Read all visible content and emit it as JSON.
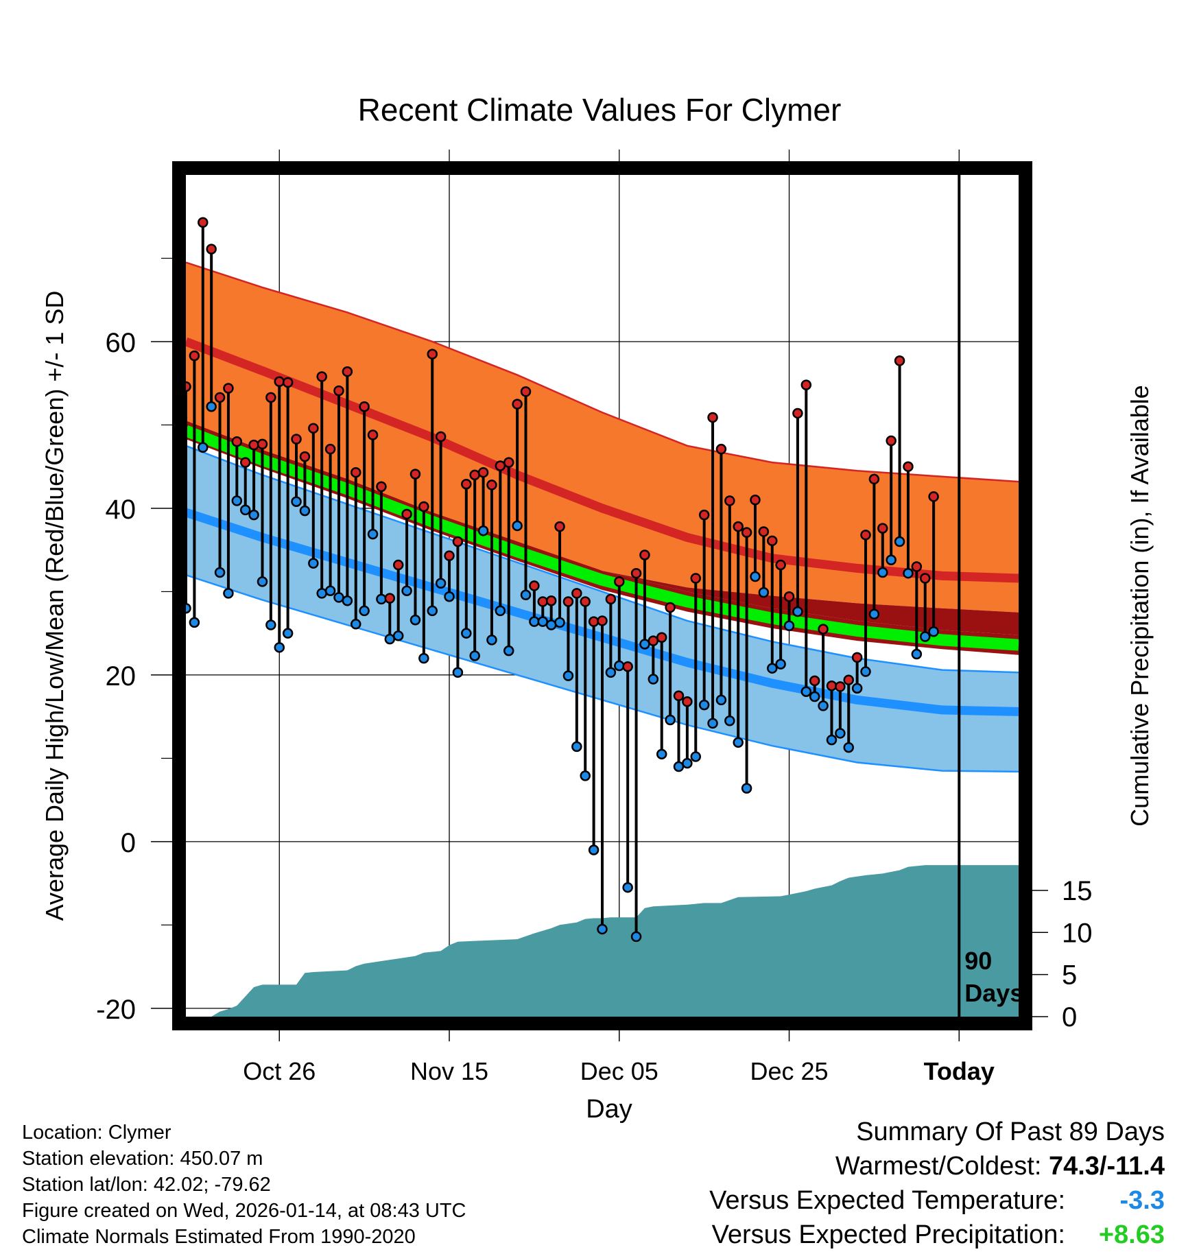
{
  "title": "Recent Climate Values For Clymer",
  "y_left_label": "Average Daily High/Low/Mean (Red/Blue/Green) +/- 1 SD",
  "y_right_label": "Cumulative Precipitation (in), If Available",
  "x_label": "Day",
  "today_marker": {
    "line1": "90",
    "line2": "Days"
  },
  "info": {
    "location": "Location: Clymer",
    "elevation": "Station elevation: 450.07 m",
    "latlon": "Station lat/lon: 42.02; -79.62",
    "created": "Figure created on Wed, 2026-01-14, at 08:43 UTC",
    "normals": "Climate Normals Estimated From 1990-2020"
  },
  "summary": {
    "heading": "Summary Of Past 89 Days",
    "warm_label": "Warmest/Coldest: ",
    "warm_value": "74.3/-11.4",
    "temp_label": "Versus Expected Temperature:",
    "temp_value": "-3.3",
    "precip_label": "Versus Expected Precipitation:",
    "precip_value": "+8.63"
  },
  "colors": {
    "high_band": "#f5782d",
    "high_line": "#d42525",
    "low_band": "#87c3e8",
    "low_line": "#1e90ff",
    "mean_band": "#9b1010",
    "mean_line": "#00ee00",
    "precip": "#4a9aa2",
    "dot_high": "#d42525",
    "dot_low": "#1e88e5",
    "temp_value": "#1e88e5",
    "precip_value": "#22cc22"
  },
  "chart_data": {
    "type": "line",
    "x_range_days": [
      -89,
      9
    ],
    "x_ticks": [
      {
        "day": -78,
        "label": "Oct 26"
      },
      {
        "day": -58,
        "label": "Nov 15"
      },
      {
        "day": -38,
        "label": "Dec 05"
      },
      {
        "day": -18,
        "label": "Dec 25"
      },
      {
        "day": 2,
        "label": "Today"
      }
    ],
    "y_left": {
      "min": -21,
      "max": 80,
      "ticks": [
        -20,
        0,
        20,
        40,
        60
      ]
    },
    "y_right": {
      "min": 0,
      "max": 100,
      "ticks": [
        0,
        5,
        10,
        15
      ]
    },
    "normals": {
      "day": [
        -89,
        -80,
        -70,
        -60,
        -50,
        -40,
        -30,
        -20,
        -10,
        0,
        9
      ],
      "high_upper": [
        69.5,
        66.5,
        63.5,
        60,
        56,
        51.5,
        47.5,
        45.5,
        44.5,
        43.8,
        43.2
      ],
      "high_mean": [
        60,
        56.5,
        52.5,
        48.5,
        44,
        40,
        36.5,
        34,
        32.8,
        31.9,
        31.6
      ],
      "high_lower": [
        49.5,
        46.5,
        43,
        39,
        35.5,
        32.5,
        30.5,
        29.5,
        28.6,
        28,
        27.5
      ],
      "mean_upper": [
        50.5,
        47,
        43.5,
        39.5,
        36,
        32.5,
        30,
        28,
        26.5,
        25.4,
        24.8
      ],
      "mean_mean": [
        49.3,
        45.8,
        42.3,
        38.4,
        34.8,
        31.4,
        28.8,
        26.8,
        25.3,
        24.2,
        23.6
      ],
      "mean_lower": [
        48.3,
        44.8,
        41.2,
        37.3,
        33.7,
        30.2,
        27.6,
        25.6,
        24.1,
        23.1,
        22.4
      ],
      "low_upper": [
        47.5,
        44,
        40.5,
        37,
        33.5,
        30,
        26.5,
        24,
        22,
        20.6,
        20.3
      ],
      "low_mean": [
        39.5,
        36.5,
        33.5,
        30.5,
        27.5,
        24.5,
        21.5,
        19,
        17,
        15.8,
        15.6
      ],
      "low_lower": [
        32,
        29,
        26,
        23,
        20,
        17,
        14,
        11.5,
        9.5,
        8.5,
        8.4
      ]
    },
    "daily_highs": [
      54.6,
      58.3,
      74.3,
      71.1,
      53.3,
      54.4,
      48.0,
      45.5,
      47.6,
      47.7,
      53.3,
      55.2,
      55.1,
      48.3,
      46.2,
      49.6,
      55.8,
      47.1,
      54.1,
      56.4,
      44.3,
      52.2,
      48.8,
      42.6,
      29.2,
      33.2,
      39.3,
      44.1,
      40.2,
      58.5,
      48.6,
      34.3,
      36.0,
      42.9,
      44.0,
      44.3,
      42.8,
      45.1,
      45.5,
      52.5,
      54.0,
      30.7,
      28.8,
      28.9,
      37.8,
      28.8,
      29.8,
      28.8,
      26.4,
      26.5,
      29.1,
      31.2,
      21.0,
      32.2,
      34.4,
      24.1,
      24.5,
      28.1,
      17.5,
      16.8,
      31.6,
      39.2,
      50.9,
      47.1,
      40.9,
      37.8,
      37.1,
      41.0,
      37.2,
      36.1,
      33.2,
      29.4,
      51.4,
      54.8,
      19.3,
      25.5,
      18.7,
      18.6,
      19.4,
      22.1,
      36.8,
      43.5,
      37.6,
      48.1,
      57.7,
      45.0,
      33.0,
      31.6,
      41.4
    ],
    "daily_lows": [
      28.0,
      26.3,
      47.3,
      52.2,
      32.3,
      29.8,
      40.9,
      39.8,
      39.2,
      31.2,
      26.0,
      23.3,
      25.0,
      40.8,
      39.7,
      33.4,
      29.8,
      30.1,
      29.3,
      28.9,
      26.1,
      27.7,
      36.9,
      29.1,
      24.3,
      24.7,
      30.1,
      26.6,
      22.0,
      27.7,
      31.0,
      29.4,
      20.3,
      25.0,
      22.3,
      37.3,
      24.2,
      27.7,
      22.9,
      37.9,
      29.6,
      26.4,
      26.4,
      26.0,
      26.3,
      19.9,
      11.4,
      7.9,
      -1.0,
      -10.5,
      20.3,
      21.1,
      -5.5,
      -11.4,
      23.7,
      19.5,
      10.5,
      14.6,
      9.0,
      9.4,
      10.2,
      16.4,
      14.2,
      17.0,
      14.5,
      11.9,
      6.4,
      31.8,
      29.9,
      20.8,
      21.3,
      25.9,
      27.6,
      18.0,
      17.4,
      16.3,
      12.2,
      13.0,
      11.3,
      18.4,
      20.4,
      27.3,
      32.3,
      33.8,
      36.0,
      32.2,
      22.5,
      24.6,
      25.2
    ],
    "precip_cumulative": {
      "day": [
        -89,
        -86,
        -85,
        -84,
        -83,
        -82,
        -81,
        -80,
        -76,
        -75,
        -74,
        -70,
        -69,
        -68,
        -66,
        -64,
        -62,
        -61,
        -59,
        -58,
        -57,
        -55,
        -50,
        -48,
        -46,
        -45,
        -43,
        -42,
        -41,
        -40,
        -39,
        -36,
        -35,
        -34,
        -30,
        -29,
        -28,
        -26,
        -24,
        -19,
        -16,
        -15,
        -13,
        -12,
        -11,
        -9,
        -7,
        -5,
        -4,
        -2,
        -1,
        0,
        9
      ],
      "value": [
        0,
        0,
        0.6,
        0.9,
        1.3,
        2.4,
        3.5,
        3.8,
        3.8,
        5.2,
        5.3,
        5.5,
        6.0,
        6.3,
        6.6,
        6.9,
        7.2,
        7.6,
        7.8,
        8.5,
        8.9,
        9.0,
        9.2,
        9.9,
        10.5,
        10.9,
        11.2,
        11.6,
        11.7,
        11.7,
        11.8,
        11.8,
        12.9,
        13.1,
        13.3,
        13.4,
        13.5,
        13.5,
        14.2,
        14.3,
        14.9,
        15.2,
        15.6,
        16.1,
        16.5,
        16.8,
        17.0,
        17.4,
        17.8,
        18.0,
        18.0,
        18.0,
        18.0
      ]
    }
  }
}
